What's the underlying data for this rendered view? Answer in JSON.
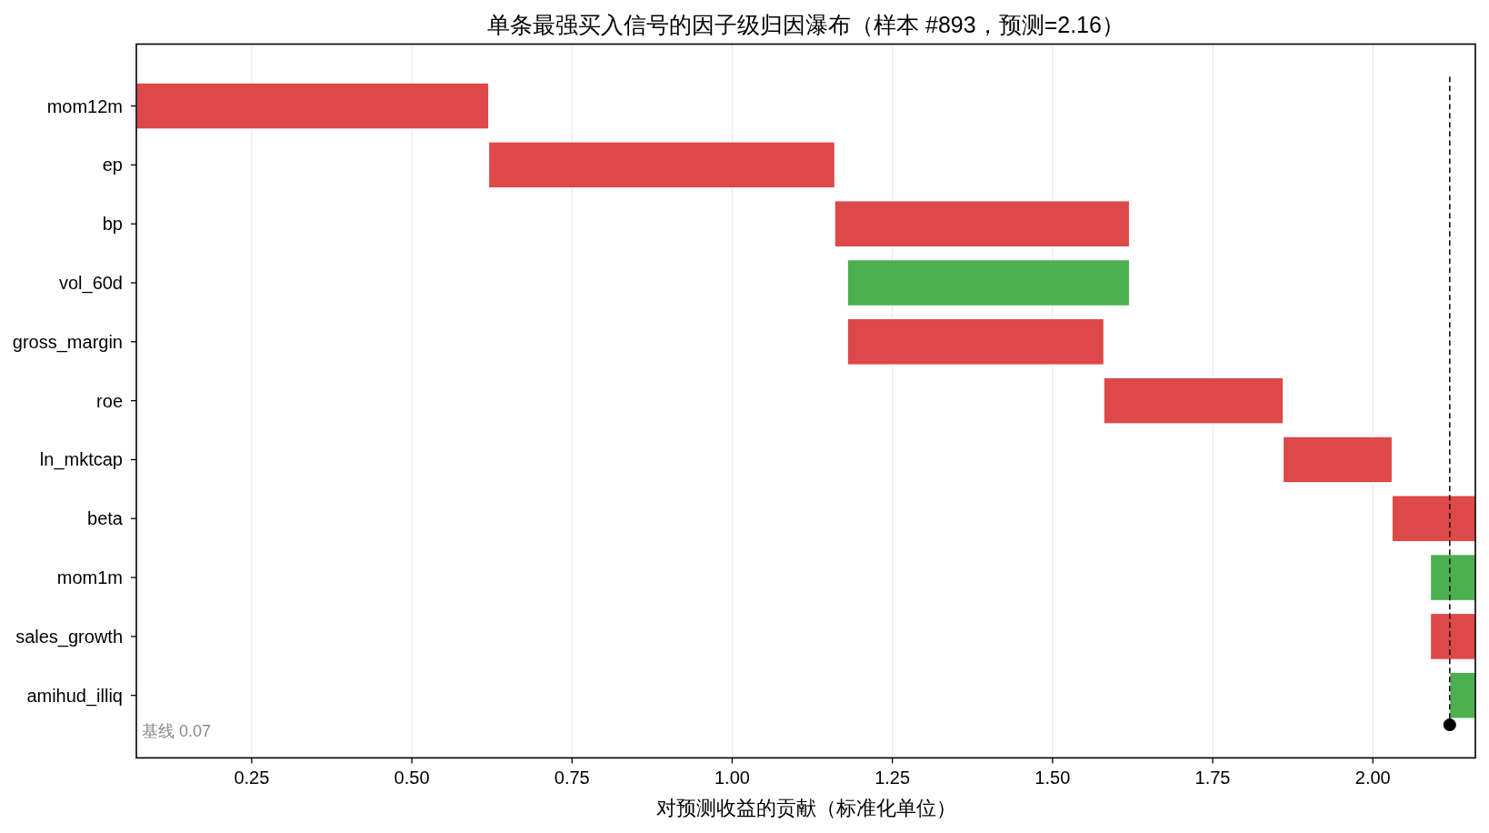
{
  "chart_data": {
    "type": "bar",
    "orientation": "horizontal",
    "title": "单条最强买入信号的因子级归因瀑布（样本 #893，预测=2.16）",
    "xlabel": "对预测收益的贡献（标准化单位）",
    "categories": [
      "mom12m",
      "ep",
      "bp",
      "vol_60d",
      "gross_margin",
      "roe",
      "ln_mktcap",
      "beta",
      "mom1m",
      "sales_growth",
      "amihud_illiq"
    ],
    "base": [
      0.07,
      0.62,
      1.16,
      1.62,
      1.18,
      1.58,
      1.86,
      2.03,
      2.16,
      2.09,
      2.16
    ],
    "values": [
      0.55,
      0.54,
      0.46,
      -0.44,
      0.4,
      0.28,
      0.17,
      0.13,
      -0.07,
      0.07,
      -0.04
    ],
    "colors": [
      "#dd4848",
      "#dd4848",
      "#dd4848",
      "#4caf50",
      "#dd4848",
      "#dd4848",
      "#dd4848",
      "#dd4848",
      "#4caf50",
      "#dd4848",
      "#4caf50"
    ],
    "xlim": [
      0.07,
      2.16
    ],
    "xticks": [
      0.25,
      {
        "value": 0.5,
        "label": "0.50"
      },
      0.75,
      {
        "value": 1.0,
        "label": "1.00"
      },
      1.25,
      {
        "value": 1.5,
        "label": "1.50"
      },
      1.75,
      {
        "value": 2.0,
        "label": "2.00"
      }
    ],
    "grid": "x",
    "ref_lines": [
      {
        "axis": "x",
        "value": 2.12,
        "color": "#000000",
        "line_style": "dashed"
      }
    ],
    "annotations": [
      "基线 0.07"
    ]
  }
}
